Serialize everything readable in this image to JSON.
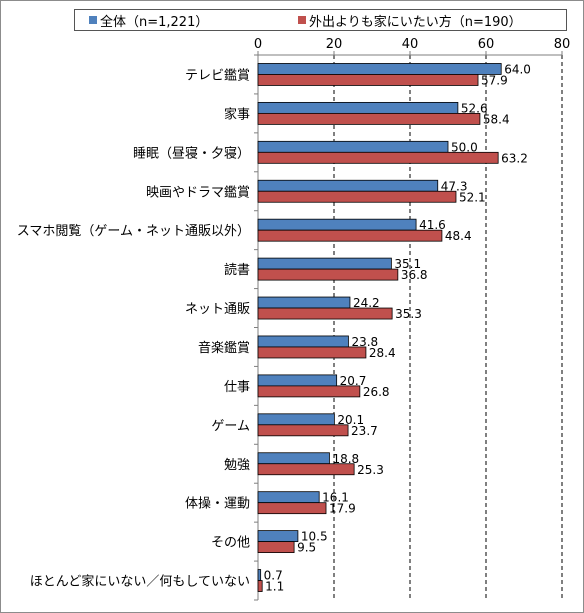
{
  "chart_data": {
    "type": "bar",
    "orientation": "horizontal",
    "categories": [
      "テレビ鑑賞",
      "家事",
      "睡眠（昼寝・夕寝）",
      "映画やドラマ鑑賞",
      "スマホ閲覧（ゲーム・ネット通販以外）",
      "読書",
      "ネット通販",
      "音楽鑑賞",
      "仕事",
      "ゲーム",
      "勉強",
      "体操・運動",
      "その他",
      "ほとんど家にいない／何もしていない"
    ],
    "series": [
      {
        "name": "全体（n=1,221）",
        "color": "#4f81bd",
        "values": [
          64.0,
          52.6,
          50.0,
          47.3,
          41.6,
          35.1,
          24.2,
          23.8,
          20.7,
          20.1,
          18.8,
          16.1,
          10.5,
          0.7
        ],
        "labels": [
          "64.0",
          "52.6",
          "50.0",
          "47.3",
          "41.6",
          "35.1",
          "24.2",
          "23.8",
          "20.7",
          "20.1",
          "18.8",
          "16.1",
          "10.5",
          "0.7"
        ]
      },
      {
        "name": "外出よりも家にいたい方（n=190）",
        "color": "#c0504d",
        "values": [
          57.9,
          58.4,
          63.2,
          52.1,
          48.4,
          36.8,
          35.3,
          28.4,
          26.8,
          23.7,
          25.3,
          17.9,
          9.5,
          1.1
        ],
        "labels": [
          "57.9",
          "58.4",
          "63.2",
          "52.1",
          "48.4",
          "36.8",
          "35.3",
          "28.4",
          "26.8",
          "23.7",
          "25.3",
          "17.9",
          "9.5",
          "1.1"
        ]
      }
    ],
    "xlim": [
      0,
      80
    ],
    "x_ticks": [
      "0",
      "20",
      "40",
      "60",
      "80"
    ],
    "x_axis_position": "top",
    "grid": "vertical dashed",
    "legend_position": "top"
  }
}
